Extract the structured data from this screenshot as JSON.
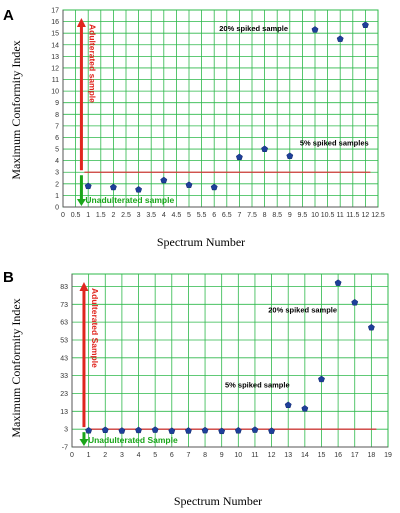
{
  "colors": {
    "grid": "#2db84a",
    "threshold": "#d23b3b",
    "red_arrow": "#e0261f",
    "green_arrow": "#1aa51a",
    "marker": "#1e3f9a",
    "axis": "#555555"
  },
  "chart_data": [
    {
      "panel": "A",
      "type": "scatter",
      "xlabel": "Spectrum Number",
      "ylabel": "Maximum Conformity Index",
      "x_ticks": [
        "0",
        "0.5",
        "1",
        "1.5",
        "2",
        "2.5",
        "3",
        "3.5",
        "4",
        "4.5",
        "5",
        "5.5",
        "6",
        "6.5",
        "7",
        "7.5",
        "8",
        "8.5",
        "9",
        "9.5",
        "10",
        "10.5",
        "11",
        "11.5",
        "12",
        "12.5"
      ],
      "y_ticks": [
        "0",
        "1",
        "2",
        "3",
        "4",
        "5",
        "6",
        "7",
        "8",
        "9",
        "10",
        "11",
        "12",
        "13",
        "14",
        "15",
        "16",
        "17"
      ],
      "xlim": [
        0,
        12.5
      ],
      "ylim": [
        0,
        17
      ],
      "threshold": {
        "y": 3,
        "x_start": 0.85,
        "x_end": 12.2
      },
      "points": [
        {
          "x": 1,
          "y": 1.8
        },
        {
          "x": 2,
          "y": 1.7
        },
        {
          "x": 3,
          "y": 1.5
        },
        {
          "x": 4,
          "y": 2.3
        },
        {
          "x": 5,
          "y": 1.9
        },
        {
          "x": 6,
          "y": 1.7
        },
        {
          "x": 7,
          "y": 4.3
        },
        {
          "x": 8,
          "y": 5.0
        },
        {
          "x": 9,
          "y": 4.4
        },
        {
          "x": 10,
          "y": 15.3
        },
        {
          "x": 11,
          "y": 14.5
        },
        {
          "x": 12,
          "y": 15.7
        }
      ],
      "up_arrow_label": "Adulterated sample",
      "down_arrow_label": "Unadulterated sample",
      "annotations": [
        {
          "text": "20% spiked sample",
          "x": 6.2,
          "y": 15.2
        },
        {
          "text": "5% spiked samples",
          "x": 9.4,
          "y": 5.3
        }
      ]
    },
    {
      "panel": "B",
      "type": "scatter",
      "xlabel": "Spectrum Number",
      "ylabel": "Maximum Conformity Index",
      "x_ticks": [
        "0",
        "1",
        "2",
        "3",
        "4",
        "5",
        "6",
        "7",
        "8",
        "9",
        "10",
        "11",
        "12",
        "13",
        "14",
        "15",
        "16",
        "17",
        "18",
        "19"
      ],
      "y_ticks": [
        "-7",
        "3",
        "13",
        "23",
        "33",
        "43",
        "53",
        "63",
        "73",
        "83"
      ],
      "xlim": [
        0,
        19
      ],
      "ylim": [
        -7,
        90
      ],
      "threshold": {
        "y": 3,
        "x_start": 0.9,
        "x_end": 18.3
      },
      "points": [
        {
          "x": 1,
          "y": 2.2
        },
        {
          "x": 2,
          "y": 2.5
        },
        {
          "x": 3,
          "y": 2.1
        },
        {
          "x": 4,
          "y": 2.4
        },
        {
          "x": 5,
          "y": 2.6
        },
        {
          "x": 6,
          "y": 2.0
        },
        {
          "x": 7,
          "y": 2.1
        },
        {
          "x": 8,
          "y": 2.3
        },
        {
          "x": 9,
          "y": 1.9
        },
        {
          "x": 10,
          "y": 2.2
        },
        {
          "x": 11,
          "y": 2.6
        },
        {
          "x": 12,
          "y": 2.0
        },
        {
          "x": 13,
          "y": 16.5
        },
        {
          "x": 14,
          "y": 14.5
        },
        {
          "x": 15,
          "y": 31.0
        },
        {
          "x": 16,
          "y": 85.0
        },
        {
          "x": 17,
          "y": 74.0
        },
        {
          "x": 18,
          "y": 60.0
        }
      ],
      "up_arrow_label": "Adulterated Sample",
      "down_arrow_label": "Unadulterated Sample",
      "annotations": [
        {
          "text": "20% spiked sample",
          "x": 11.8,
          "y": 68.5
        },
        {
          "text": "5% spiked sample",
          "x": 9.2,
          "y": 26.5
        }
      ]
    }
  ]
}
